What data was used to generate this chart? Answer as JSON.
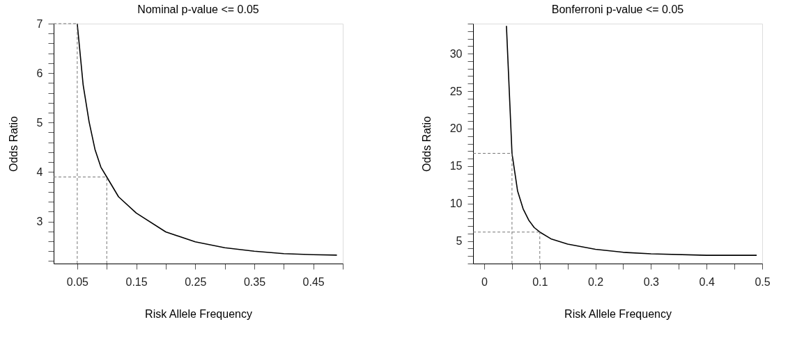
{
  "chart_data": [
    {
      "type": "line",
      "title": "Nominal p-value <= 0.05",
      "xlabel": "Risk Allele Frequency",
      "ylabel": "Odds Ratio",
      "x": [
        0.05,
        0.06,
        0.07,
        0.08,
        0.09,
        0.1,
        0.12,
        0.15,
        0.2,
        0.25,
        0.3,
        0.35,
        0.4,
        0.45,
        0.49
      ],
      "series": [
        {
          "color": "#000000",
          "values": [
            7.0,
            5.76,
            5.02,
            4.46,
            4.1,
            3.9,
            3.5,
            3.17,
            2.79,
            2.59,
            2.47,
            2.4,
            2.35,
            2.33,
            2.32
          ]
        }
      ],
      "xlim": [
        0.01,
        0.5
      ],
      "ylim": [
        2.15,
        7
      ],
      "xticks": [
        0.05,
        {
          "value": 0.1,
          "label": null
        },
        0.15,
        {
          "value": 0.2,
          "label": null
        },
        0.25,
        {
          "value": 0.3,
          "label": null
        },
        0.35,
        {
          "value": 0.4,
          "label": null
        },
        0.45,
        {
          "value": 0.5,
          "label": null
        }
      ],
      "yticks": [
        {
          "value": 2.2,
          "label": null
        },
        {
          "value": 2.4,
          "label": null
        },
        {
          "value": 2.6,
          "label": null
        },
        {
          "value": 2.8,
          "label": null
        },
        3,
        {
          "value": 3.2,
          "label": null
        },
        {
          "value": 3.4,
          "label": null
        },
        {
          "value": 3.6,
          "label": null
        },
        {
          "value": 3.8,
          "label": null
        },
        4,
        {
          "value": 4.2,
          "label": null
        },
        {
          "value": 4.4,
          "label": null
        },
        {
          "value": 4.6,
          "label": null
        },
        {
          "value": 4.8,
          "label": null
        },
        5,
        {
          "value": 5.2,
          "label": null
        },
        {
          "value": 5.4,
          "label": null
        },
        {
          "value": 5.6,
          "label": null
        },
        {
          "value": 5.8,
          "label": null
        },
        6,
        {
          "value": 6.2,
          "label": null
        },
        {
          "value": 6.4,
          "label": null
        },
        {
          "value": 6.6,
          "label": null
        },
        {
          "value": 6.8,
          "label": null
        },
        7
      ],
      "ref_lines": [
        {
          "axis": "x",
          "value": 0.05,
          "color": "#777777",
          "line_style": "dashed"
        },
        {
          "axis": "y",
          "value": 7,
          "color": "#777777",
          "line_style": "dashed"
        },
        {
          "axis": "x",
          "value": 0.1,
          "color": "#777777",
          "line_style": "dashed"
        },
        {
          "axis": "y",
          "value": 3.9,
          "color": "#777777",
          "line_style": "dashed"
        }
      ],
      "grid": false,
      "marker": "none",
      "line_style": "solid"
    },
    {
      "type": "line",
      "title": "Bonferroni p-value <= 0.05",
      "xlabel": "Risk Allele Frequency",
      "ylabel": "Odds Ratio",
      "x": [
        0.04,
        0.045,
        0.05,
        0.06,
        0.07,
        0.08,
        0.09,
        0.1,
        0.12,
        0.15,
        0.2,
        0.25,
        0.3,
        0.4,
        0.49
      ],
      "series": [
        {
          "color": "#000000",
          "values": [
            33.7,
            25.2,
            16.7,
            11.7,
            9.3,
            7.8,
            6.8,
            6.2,
            5.3,
            4.6,
            3.9,
            3.5,
            3.3,
            3.1,
            3.1
          ]
        }
      ],
      "xlim": [
        -0.02,
        0.5
      ],
      "ylim": [
        2,
        34
      ],
      "xticks": [
        0,
        {
          "value": 0.05,
          "label": null
        },
        0.1,
        {
          "value": 0.15,
          "label": null
        },
        0.2,
        {
          "value": 0.25,
          "label": null
        },
        0.3,
        {
          "value": 0.35,
          "label": null
        },
        0.4,
        {
          "value": 0.45,
          "label": null
        },
        0.5
      ],
      "yticks": [
        {
          "value": 2,
          "label": null
        },
        {
          "value": 3,
          "label": null
        },
        {
          "value": 4,
          "label": null
        },
        5,
        {
          "value": 6,
          "label": null
        },
        {
          "value": 7,
          "label": null
        },
        {
          "value": 8,
          "label": null
        },
        {
          "value": 9,
          "label": null
        },
        10,
        {
          "value": 11,
          "label": null
        },
        {
          "value": 12,
          "label": null
        },
        {
          "value": 13,
          "label": null
        },
        {
          "value": 14,
          "label": null
        },
        15,
        {
          "value": 16,
          "label": null
        },
        {
          "value": 17,
          "label": null
        },
        {
          "value": 18,
          "label": null
        },
        {
          "value": 19,
          "label": null
        },
        20,
        {
          "value": 21,
          "label": null
        },
        {
          "value": 22,
          "label": null
        },
        {
          "value": 23,
          "label": null
        },
        {
          "value": 24,
          "label": null
        },
        25,
        {
          "value": 26,
          "label": null
        },
        {
          "value": 27,
          "label": null
        },
        {
          "value": 28,
          "label": null
        },
        {
          "value": 29,
          "label": null
        },
        30,
        {
          "value": 31,
          "label": null
        },
        {
          "value": 32,
          "label": null
        },
        {
          "value": 33,
          "label": null
        },
        {
          "value": 34,
          "label": null
        }
      ],
      "ref_lines": [
        {
          "axis": "x",
          "value": 0.05,
          "color": "#777777",
          "line_style": "dashed"
        },
        {
          "axis": "y",
          "value": 16.7,
          "color": "#777777",
          "line_style": "dashed"
        },
        {
          "axis": "x",
          "value": 0.1,
          "color": "#777777",
          "line_style": "dashed"
        },
        {
          "axis": "y",
          "value": 6.2,
          "color": "#777777",
          "line_style": "dashed"
        }
      ],
      "grid": false,
      "marker": "none",
      "line_style": "solid"
    }
  ]
}
